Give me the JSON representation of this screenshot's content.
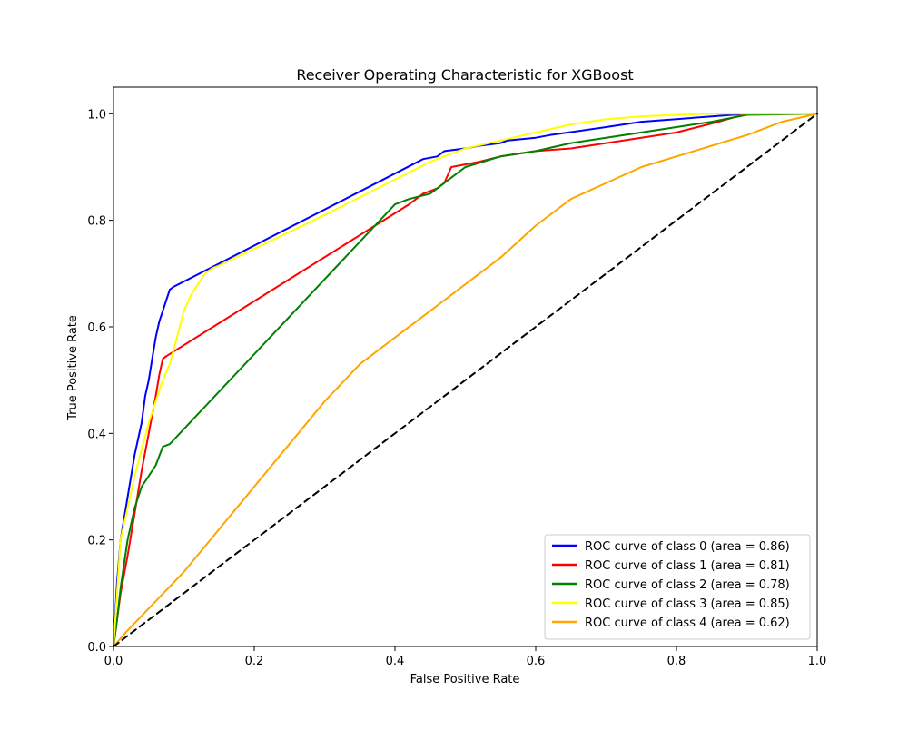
{
  "chart_data": {
    "type": "line",
    "title": "Receiver Operating Characteristic for XGBoost",
    "xlabel": "False Positive Rate",
    "ylabel": "True Positive Rate",
    "xlim": [
      0.0,
      1.0
    ],
    "ylim": [
      0.0,
      1.05
    ],
    "xticks": [
      0.0,
      0.2,
      0.4,
      0.6,
      0.8,
      1.0
    ],
    "xtick_labels": [
      "0.0",
      "0.2",
      "0.4",
      "0.6",
      "0.8",
      "1.0"
    ],
    "yticks": [
      0.0,
      0.2,
      0.4,
      0.6,
      0.8,
      1.0
    ],
    "ytick_labels": [
      "0.0",
      "0.2",
      "0.4",
      "0.6",
      "0.8",
      "1.0"
    ],
    "grid": false,
    "legend_position": "lower right",
    "series": [
      {
        "name": "ROC curve of class 0 (area = 0.86)",
        "color": "#0000ff",
        "dashed": false,
        "x": [
          0.0,
          0.005,
          0.01,
          0.02,
          0.03,
          0.04,
          0.045,
          0.05,
          0.055,
          0.06,
          0.065,
          0.07,
          0.075,
          0.08,
          0.085,
          0.44,
          0.46,
          0.47,
          0.5,
          0.52,
          0.55,
          0.56,
          0.6,
          0.62,
          0.7,
          0.75,
          0.8,
          0.85,
          0.9,
          1.0
        ],
        "y": [
          0.0,
          0.12,
          0.2,
          0.28,
          0.36,
          0.42,
          0.47,
          0.5,
          0.54,
          0.58,
          0.61,
          0.63,
          0.65,
          0.67,
          0.675,
          0.915,
          0.92,
          0.93,
          0.935,
          0.94,
          0.945,
          0.95,
          0.955,
          0.96,
          0.975,
          0.985,
          0.99,
          0.995,
          1.0,
          1.0
        ]
      },
      {
        "name": "ROC curve of class 1 (area = 0.81)",
        "color": "#ff0000",
        "dashed": false,
        "x": [
          0.0,
          0.005,
          0.01,
          0.02,
          0.03,
          0.04,
          0.05,
          0.06,
          0.065,
          0.07,
          0.075,
          0.42,
          0.44,
          0.46,
          0.47,
          0.48,
          0.5,
          0.52,
          0.55,
          0.6,
          0.65,
          0.7,
          0.75,
          0.8,
          0.86,
          0.9,
          1.0
        ],
        "y": [
          0.0,
          0.05,
          0.1,
          0.17,
          0.25,
          0.33,
          0.4,
          0.47,
          0.51,
          0.54,
          0.545,
          0.83,
          0.85,
          0.86,
          0.87,
          0.9,
          0.905,
          0.91,
          0.92,
          0.93,
          0.935,
          0.945,
          0.955,
          0.965,
          0.985,
          1.0,
          1.0
        ]
      },
      {
        "name": "ROC curve of class 2 (area = 0.78)",
        "color": "#008000",
        "dashed": false,
        "x": [
          0.0,
          0.005,
          0.01,
          0.02,
          0.03,
          0.04,
          0.05,
          0.06,
          0.07,
          0.08,
          0.4,
          0.42,
          0.45,
          0.48,
          0.5,
          0.55,
          0.6,
          0.65,
          0.7,
          0.75,
          0.8,
          0.85,
          0.9,
          1.0
        ],
        "y": [
          0.0,
          0.05,
          0.11,
          0.2,
          0.26,
          0.3,
          0.32,
          0.34,
          0.375,
          0.38,
          0.83,
          0.84,
          0.85,
          0.88,
          0.9,
          0.92,
          0.93,
          0.945,
          0.955,
          0.965,
          0.975,
          0.985,
          0.998,
          1.0
        ]
      },
      {
        "name": "ROC curve of class 3 (area = 0.85)",
        "color": "#ffff00",
        "dashed": false,
        "x": [
          0.0,
          0.005,
          0.01,
          0.02,
          0.03,
          0.04,
          0.05,
          0.06,
          0.07,
          0.08,
          0.09,
          0.1,
          0.11,
          0.12,
          0.13,
          0.14,
          0.15,
          0.3,
          0.45,
          0.5,
          0.55,
          0.6,
          0.65,
          0.7,
          0.75,
          0.8,
          0.85,
          0.9,
          1.0
        ],
        "y": [
          0.0,
          0.1,
          0.2,
          0.26,
          0.32,
          0.37,
          0.42,
          0.46,
          0.5,
          0.53,
          0.58,
          0.63,
          0.66,
          0.68,
          0.7,
          0.71,
          0.715,
          0.81,
          0.91,
          0.935,
          0.95,
          0.965,
          0.98,
          0.99,
          0.995,
          0.998,
          1.0,
          1.0,
          1.0
        ]
      },
      {
        "name": "ROC curve of class 4 (area = 0.62)",
        "color": "#ffa500",
        "dashed": false,
        "x": [
          0.0,
          0.02,
          0.1,
          0.2,
          0.3,
          0.35,
          0.4,
          0.45,
          0.5,
          0.55,
          0.6,
          0.65,
          0.7,
          0.75,
          0.8,
          0.85,
          0.9,
          0.95,
          1.0
        ],
        "y": [
          0.0,
          0.03,
          0.14,
          0.3,
          0.46,
          0.53,
          0.58,
          0.63,
          0.68,
          0.73,
          0.79,
          0.84,
          0.87,
          0.9,
          0.92,
          0.94,
          0.96,
          0.985,
          1.0
        ]
      },
      {
        "name": "",
        "color": "#000000",
        "dashed": true,
        "x": [
          0.0,
          1.0
        ],
        "y": [
          0.0,
          1.0
        ]
      }
    ]
  }
}
